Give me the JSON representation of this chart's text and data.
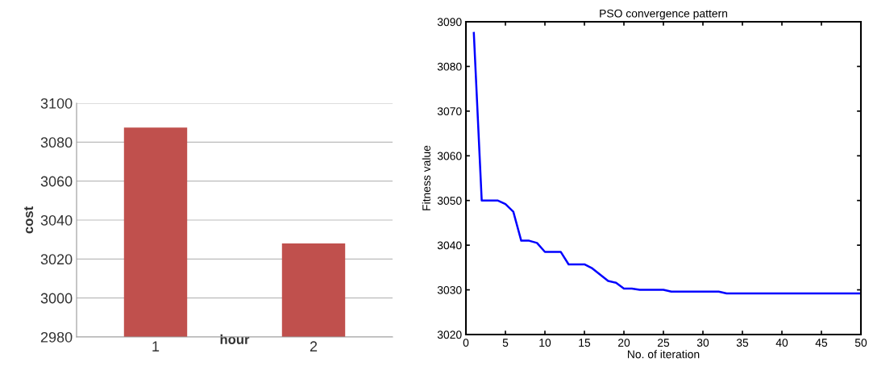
{
  "chart_data": [
    {
      "type": "bar",
      "categories": [
        "1",
        "2"
      ],
      "xlabel": "hour",
      "ylabel": "cost",
      "series": [
        {
          "color": "#c0504d",
          "values": [
            3087.5,
            3028
          ]
        }
      ],
      "ylim": [
        2980,
        3100
      ],
      "yticks": [
        2980,
        3000,
        3020,
        3040,
        3060,
        3080,
        3100
      ],
      "grid": "y"
    },
    {
      "type": "line",
      "title": "PSO convergence pattern",
      "xlabel": "No. of iteration",
      "ylabel": "Fitness value",
      "series": [
        {
          "color": "#0000ff",
          "x": [
            1,
            2,
            4,
            5,
            6,
            7,
            8,
            9,
            10,
            12,
            13,
            15,
            16,
            17,
            18,
            19,
            20,
            21,
            22,
            25,
            26,
            32,
            33,
            50
          ],
          "values": [
            3087.5,
            3050,
            3050,
            3049.2,
            3047.5,
            3041,
            3041,
            3040.5,
            3038.5,
            3038.5,
            3035.7,
            3035.7,
            3034.8,
            3033.4,
            3032,
            3031.6,
            3030.3,
            3030.3,
            3030,
            3030,
            3029.6,
            3029.6,
            3029.2,
            3029.2
          ]
        }
      ],
      "xlim": [
        0,
        50
      ],
      "xticks": [
        0,
        5,
        10,
        15,
        20,
        25,
        30,
        35,
        40,
        45,
        50
      ],
      "ylim": [
        3020,
        3090
      ],
      "yticks": [
        3020,
        3030,
        3040,
        3050,
        3060,
        3070,
        3080,
        3090
      ],
      "grid": false
    }
  ]
}
